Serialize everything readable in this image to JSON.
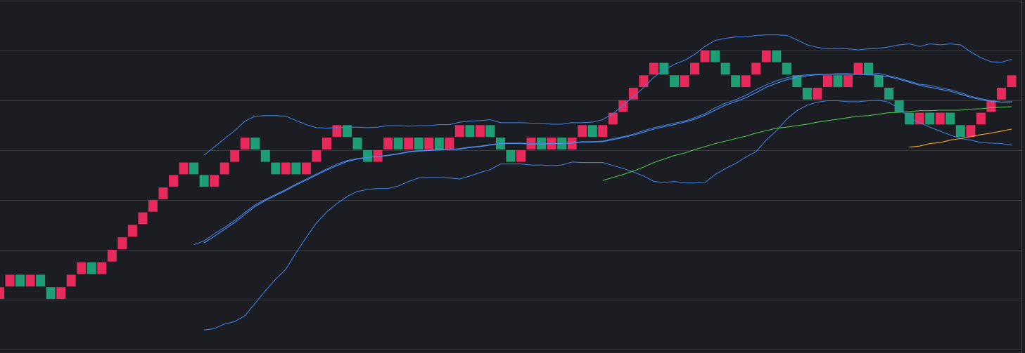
{
  "chart_data": {
    "type": "renko",
    "up_color": "#e8295b",
    "down_color": "#1f9e76",
    "open": [
      1,
      1.25,
      1.5,
      1.25,
      1.5,
      1.25,
      1,
      1.25,
      1.5,
      1.75,
      1.5,
      1.75,
      2,
      2.25,
      2.5,
      2.75,
      3,
      3.25,
      3.5,
      3.75,
      3.5,
      3.25,
      3.5,
      3.75,
      4,
      4.25,
      4,
      3.75,
      3.5,
      3.75,
      3.5,
      3.75,
      4,
      4.25,
      4.5,
      4.25,
      4,
      3.75,
      4,
      4.25,
      4,
      4.25,
      4,
      4.25,
      4,
      4.25,
      4.5,
      4.25,
      4.5,
      4.25,
      4,
      3.75,
      4,
      4.25,
      4,
      4.25,
      4,
      4.25,
      4.5,
      4.25,
      4.5,
      4.75,
      5,
      5.25,
      5.5,
      5.75,
      5.5,
      5.25,
      5.5,
      5.75,
      6,
      5.75,
      5.5,
      5.25,
      5.5,
      5.75,
      6,
      5.75,
      5.5,
      5.25,
      5,
      5.25,
      5.5,
      5.25,
      5.5,
      5.75,
      5.5,
      5.25,
      5,
      4.75,
      4.5,
      4.75,
      4.5,
      4.75,
      4.5,
      4.25,
      4.5,
      4.75,
      5,
      5.25
    ],
    "close": [
      1.25,
      1.5,
      1.25,
      1.5,
      1.25,
      1,
      1.25,
      1.5,
      1.75,
      1.5,
      1.75,
      2,
      2.25,
      2.5,
      2.75,
      3,
      3.25,
      3.5,
      3.75,
      3.5,
      3.25,
      3.5,
      3.75,
      4,
      4.25,
      4,
      3.75,
      3.5,
      3.75,
      3.5,
      3.75,
      4,
      4.25,
      4.5,
      4.25,
      4,
      3.75,
      4,
      4.25,
      4,
      4.25,
      4,
      4.25,
      4,
      4.25,
      4.5,
      4.25,
      4.5,
      4.25,
      4,
      3.75,
      4,
      4.25,
      4,
      4.25,
      4,
      4.25,
      4.5,
      4.25,
      4.5,
      4.75,
      5,
      5.25,
      5.5,
      5.75,
      5.5,
      5.25,
      5.5,
      5.75,
      6,
      5.75,
      5.5,
      5.25,
      5.5,
      5.75,
      6,
      5.75,
      5.5,
      5.25,
      5,
      5.25,
      5.5,
      5.25,
      5.5,
      5.75,
      5.5,
      5.25,
      5,
      4.75,
      4.5,
      4.75,
      4.5,
      4.75,
      4.5,
      4.25,
      4.5,
      4.75,
      5,
      5.25,
      5.5
    ],
    "series": [
      {
        "color": "#3b7ddd",
        "values": [
          null,
          null,
          null,
          null,
          null,
          null,
          null,
          null,
          null,
          null,
          null,
          null,
          null,
          null,
          null,
          null,
          null,
          null,
          null,
          null,
          3.9,
          4.06,
          4.23,
          4.39,
          4.58,
          4.68,
          4.69,
          4.69,
          4.68,
          4.59,
          4.51,
          4.45,
          4.44,
          4.45,
          4.46,
          4.46,
          4.45,
          4.46,
          4.49,
          4.49,
          4.48,
          4.49,
          4.49,
          4.51,
          4.51,
          4.56,
          4.58,
          4.59,
          4.61,
          4.55,
          4.55,
          4.55,
          4.54,
          4.54,
          4.52,
          4.52,
          4.55,
          4.55,
          4.56,
          4.61,
          4.73,
          4.9,
          5.07,
          5.25,
          5.46,
          5.61,
          5.72,
          5.8,
          5.92,
          6.08,
          6.2,
          6.24,
          6.27,
          6.27,
          6.3,
          6.31,
          6.31,
          6.3,
          6.21,
          6.11,
          6.06,
          6.03,
          6.04,
          6.03,
          6.01,
          6.03,
          6.04,
          6.07,
          6.11,
          6.13,
          6.08,
          6.13,
          6.11,
          6.13,
          6.11,
          5.97,
          5.85,
          5.77,
          5.76,
          5.82
        ]
      },
      {
        "color": "#3b7ddd",
        "values": [
          null,
          null,
          null,
          null,
          null,
          null,
          null,
          null,
          null,
          null,
          null,
          null,
          null,
          null,
          null,
          null,
          null,
          null,
          null,
          2.1,
          2.18,
          2.32,
          2.45,
          2.59,
          2.75,
          2.9,
          3.01,
          3.11,
          3.21,
          3.32,
          3.42,
          3.52,
          3.62,
          3.72,
          3.79,
          3.83,
          3.86,
          3.87,
          3.9,
          3.93,
          3.97,
          3.99,
          4,
          4.01,
          4.01,
          4.03,
          4.06,
          4.08,
          4.11,
          4.14,
          4.14,
          4.14,
          4.13,
          4.13,
          4.13,
          4.13,
          4.15,
          4.17,
          4.17,
          4.18,
          4.23,
          4.27,
          4.32,
          4.39,
          4.45,
          4.49,
          4.54,
          4.58,
          4.65,
          4.73,
          4.85,
          4.94,
          5.01,
          5.1,
          5.21,
          5.31,
          5.39,
          5.45,
          5.49,
          5.51,
          5.52,
          5.52,
          5.52,
          5.52,
          5.52,
          5.52,
          5.54,
          5.49,
          5.44,
          5.38,
          5.32,
          5.3,
          5.25,
          5.21,
          5.15,
          5.08,
          5.03,
          4.99,
          4.96,
          4.96
        ]
      },
      {
        "color": "#3b7ddd",
        "values": [
          null,
          null,
          null,
          null,
          null,
          null,
          null,
          null,
          null,
          null,
          null,
          null,
          null,
          null,
          null,
          null,
          null,
          null,
          null,
          null,
          0.39,
          0.42,
          0.51,
          0.56,
          0.68,
          0.93,
          1.18,
          1.41,
          1.61,
          1.94,
          2.25,
          2.54,
          2.76,
          2.93,
          3.07,
          3.17,
          3.21,
          3.23,
          3.23,
          3.28,
          3.37,
          3.44,
          3.45,
          3.45,
          3.44,
          3.42,
          3.48,
          3.55,
          3.61,
          3.72,
          3.72,
          3.72,
          3.7,
          3.7,
          3.69,
          3.7,
          3.76,
          3.75,
          3.75,
          3.75,
          3.69,
          3.63,
          3.56,
          3.48,
          3.37,
          3.35,
          3.37,
          3.34,
          3.34,
          3.35,
          3.51,
          3.63,
          3.73,
          3.86,
          3.97,
          4.2,
          4.39,
          4.62,
          4.79,
          4.9,
          4.96,
          4.99,
          4.99,
          4.97,
          4.97,
          4.99,
          5,
          4.96,
          4.83,
          4.65,
          4.55,
          4.46,
          4.38,
          4.3,
          4.23,
          4.2,
          4.15,
          4.14,
          4.13,
          4.1
        ]
      },
      {
        "color": "#4f8ff0",
        "values": [
          null,
          null,
          null,
          null,
          null,
          null,
          null,
          null,
          null,
          null,
          null,
          null,
          null,
          null,
          null,
          null,
          null,
          null,
          null,
          null,
          2.14,
          2.27,
          2.41,
          2.55,
          2.71,
          2.87,
          2.99,
          3.09,
          3.19,
          3.3,
          3.4,
          3.5,
          3.6,
          3.69,
          3.77,
          3.82,
          3.85,
          3.87,
          3.89,
          3.92,
          3.96,
          3.98,
          3.99,
          4,
          4.01,
          4.02,
          4.05,
          4.07,
          4.1,
          4.13,
          4.13,
          4.13,
          4.12,
          4.12,
          4.13,
          4.13,
          4.14,
          4.16,
          4.16,
          4.17,
          4.21,
          4.25,
          4.3,
          4.36,
          4.42,
          4.47,
          4.51,
          4.56,
          4.62,
          4.7,
          4.8,
          4.9,
          4.97,
          5.05,
          5.15,
          5.26,
          5.34,
          5.41,
          5.46,
          5.49,
          5.51,
          5.52,
          5.53,
          5.53,
          5.52,
          5.51,
          5.5,
          5.47,
          5.42,
          5.36,
          5.3,
          5.26,
          5.22,
          5.18,
          5.12,
          5.06,
          5.01,
          4.98,
          4.96,
          4.97
        ]
      },
      {
        "color": "#4cc44c",
        "values": [
          null,
          null,
          null,
          null,
          null,
          null,
          null,
          null,
          null,
          null,
          null,
          null,
          null,
          null,
          null,
          null,
          null,
          null,
          null,
          null,
          null,
          null,
          null,
          null,
          null,
          null,
          null,
          null,
          null,
          null,
          null,
          null,
          null,
          null,
          null,
          null,
          null,
          null,
          null,
          null,
          null,
          null,
          null,
          null,
          null,
          null,
          null,
          null,
          null,
          null,
          null,
          null,
          null,
          null,
          null,
          null,
          null,
          null,
          null,
          3.39,
          3.45,
          3.51,
          3.58,
          3.66,
          3.75,
          3.82,
          3.89,
          3.94,
          4.01,
          4.07,
          4.13,
          4.18,
          4.23,
          4.28,
          4.34,
          4.39,
          4.44,
          4.46,
          4.49,
          4.52,
          4.56,
          4.59,
          4.62,
          4.65,
          4.68,
          4.69,
          4.72,
          4.75,
          4.76,
          4.77,
          4.79,
          4.79,
          4.8,
          4.8,
          4.8,
          4.82,
          4.83,
          4.85,
          4.86,
          4.87
        ]
      },
      {
        "color": "#f0a22a",
        "values": [
          null,
          null,
          null,
          null,
          null,
          null,
          null,
          null,
          null,
          null,
          null,
          null,
          null,
          null,
          null,
          null,
          null,
          null,
          null,
          null,
          null,
          null,
          null,
          null,
          null,
          null,
          null,
          null,
          null,
          null,
          null,
          null,
          null,
          null,
          null,
          null,
          null,
          null,
          null,
          null,
          null,
          null,
          null,
          null,
          null,
          null,
          null,
          null,
          null,
          null,
          null,
          null,
          null,
          null,
          null,
          null,
          null,
          null,
          null,
          null,
          null,
          null,
          null,
          null,
          null,
          null,
          null,
          null,
          null,
          null,
          null,
          null,
          null,
          null,
          null,
          null,
          null,
          null,
          null,
          null,
          null,
          null,
          null,
          null,
          null,
          null,
          null,
          null,
          null,
          4.06,
          4.08,
          4.13,
          4.15,
          4.2,
          4.23,
          4.27,
          4.31,
          4.34,
          4.38,
          4.42
        ]
      }
    ],
    "ylim": [
      -0.07,
      7.01
    ],
    "yticks": [
      0,
      1,
      2,
      3,
      4,
      5,
      6,
      7
    ],
    "grid": true
  }
}
